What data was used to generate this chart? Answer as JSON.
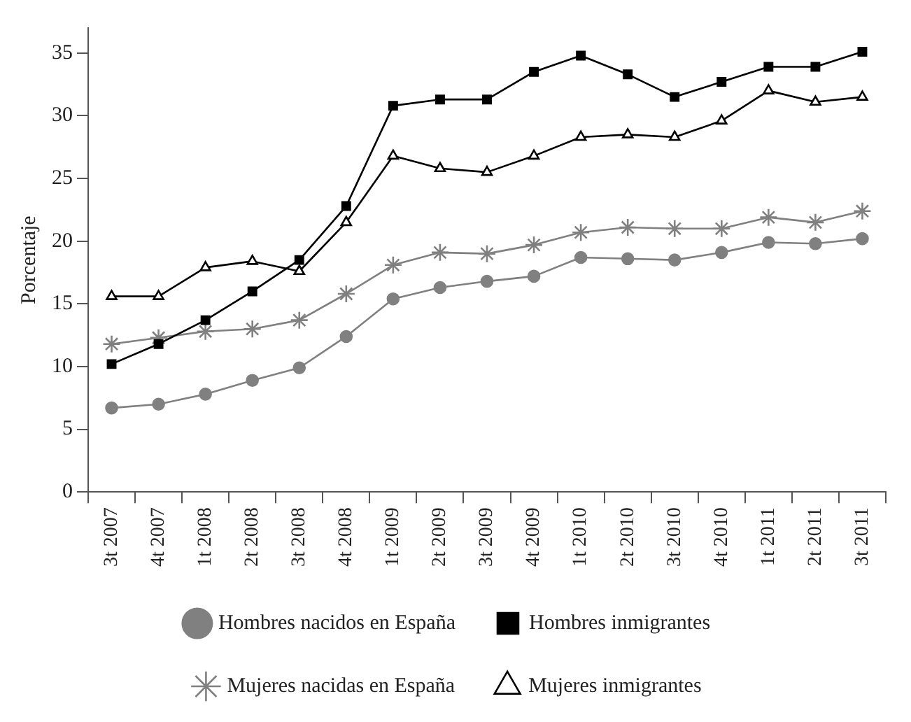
{
  "chart_data": {
    "type": "line",
    "ylabel": "Porcentaje",
    "categories": [
      "3t 2007",
      "4t 2007",
      "1t 2008",
      "2t 2008",
      "3t 2008",
      "4t 2008",
      "1t 2009",
      "2t 2009",
      "3t 2009",
      "4t 2009",
      "1t 2010",
      "2t 2010",
      "3t 2010",
      "4t 2010",
      "1t 2011",
      "2t 2011",
      "3t 2011"
    ],
    "series": [
      {
        "name": "Hombres nacidos en España",
        "color": "#808080",
        "marker": "circle",
        "values": [
          6.7,
          7.0,
          7.8,
          8.9,
          9.9,
          12.4,
          15.4,
          16.3,
          16.8,
          17.2,
          18.7,
          18.6,
          18.5,
          19.1,
          19.9,
          19.8,
          20.2
        ]
      },
      {
        "name": "Hombres inmigrantes",
        "color": "#000000",
        "marker": "square",
        "values": [
          10.2,
          11.8,
          13.7,
          16.0,
          18.5,
          22.8,
          30.8,
          31.3,
          31.3,
          33.5,
          34.8,
          33.3,
          31.5,
          32.7,
          33.9,
          33.9,
          35.1
        ]
      },
      {
        "name": "Mujeres nacidas en España",
        "color": "#808080",
        "marker": "cross",
        "values": [
          11.8,
          12.3,
          12.8,
          13.0,
          13.7,
          15.8,
          18.1,
          19.1,
          19.0,
          19.7,
          20.7,
          21.1,
          21.0,
          21.0,
          21.9,
          21.5,
          22.4
        ]
      },
      {
        "name": "Mujeres inmigrantes",
        "color": "#000000",
        "marker": "triangle",
        "values": [
          15.6,
          15.6,
          17.9,
          18.4,
          17.6,
          21.5,
          26.8,
          25.8,
          25.5,
          26.8,
          28.3,
          28.5,
          28.3,
          29.6,
          32.0,
          31.1,
          31.5
        ]
      }
    ],
    "ylim": [
      0,
      37
    ],
    "yticks": [
      0,
      5,
      10,
      15,
      20,
      25,
      30,
      35
    ],
    "grid": false,
    "legend": "bottom",
    "line_style": "solid"
  }
}
